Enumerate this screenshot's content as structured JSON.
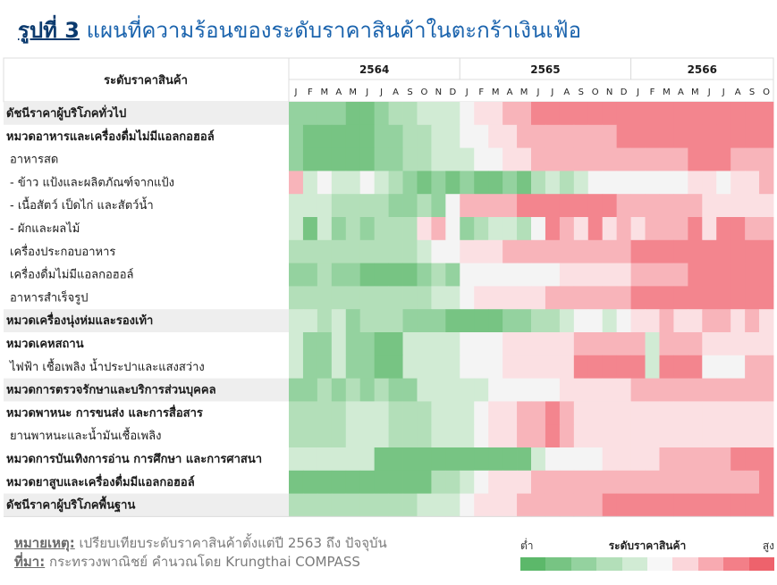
{
  "title": {
    "figure_label": "รูปที่ 3",
    "text": "แผนที่ความร้อนของระดับราคาสินค้าในตะกร้าเงินเฟ้อ"
  },
  "table_header": {
    "row_header": "ระดับราคาสินค้า",
    "years": [
      {
        "label": "2564",
        "months": 12
      },
      {
        "label": "2565",
        "months": 12
      },
      {
        "label": "2566",
        "months": 10
      }
    ],
    "month_letters": [
      "J",
      "F",
      "M",
      "A",
      "M",
      "J",
      "J",
      "A",
      "S",
      "O",
      "N",
      "D",
      "J",
      "F",
      "M",
      "A",
      "M",
      "J",
      "J",
      "A",
      "S",
      "O",
      "N",
      "D",
      "J",
      "F",
      "M",
      "A",
      "M",
      "J",
      "J",
      "A",
      "S",
      "O"
    ]
  },
  "chart_data": {
    "type": "heatmap",
    "title": "แผนที่ความร้อนของระดับราคาสินค้าในตะกร้าเงินเฟ้อ",
    "value_scale": "0 = ต่ำ (low), 9 = สูง (high); relative price level since 2563",
    "rows": [
      {
        "label": "ดัชนีราคาผู้บริโภคทั่วไป",
        "bold": true,
        "shade": true,
        "values": [
          2,
          2,
          2,
          2,
          1,
          1,
          2,
          3,
          3,
          4,
          4,
          4,
          5,
          6,
          6,
          7,
          7,
          8,
          8,
          8,
          8,
          8,
          8,
          8,
          8,
          8,
          8,
          8,
          8,
          8,
          8,
          8,
          8,
          8
        ]
      },
      {
        "label": "หมวดอาหารและเครื่องดื่มไม่มีแอลกอฮอล์",
        "bold": true,
        "shade": false,
        "values": [
          2,
          1,
          1,
          1,
          1,
          1,
          2,
          2,
          3,
          3,
          4,
          4,
          5,
          5,
          6,
          6,
          7,
          7,
          7,
          7,
          7,
          7,
          7,
          8,
          8,
          8,
          8,
          8,
          8,
          8,
          8,
          8,
          8,
          8
        ]
      },
      {
        "label": "อาหารสด",
        "bold": false,
        "shade": false,
        "values": [
          2,
          1,
          1,
          1,
          1,
          1,
          2,
          2,
          3,
          3,
          4,
          4,
          4,
          5,
          5,
          6,
          6,
          7,
          7,
          7,
          7,
          7,
          7,
          7,
          7,
          7,
          7,
          7,
          8,
          8,
          8,
          7,
          7,
          7
        ]
      },
      {
        "label": "- ข้าว แป้งและผลิตภัณฑ์จากแป้ง",
        "bold": false,
        "shade": false,
        "values": [
          7,
          4,
          5,
          4,
          4,
          5,
          4,
          3,
          2,
          1,
          2,
          1,
          2,
          1,
          1,
          2,
          1,
          3,
          4,
          3,
          4,
          5,
          5,
          5,
          5,
          5,
          5,
          5,
          6,
          6,
          5,
          6,
          6,
          7
        ]
      },
      {
        "label": "- เนื้อสัตว์ เป็ดไก่ และสัตว์น้ำ",
        "bold": false,
        "shade": false,
        "values": [
          4,
          4,
          4,
          3,
          3,
          3,
          3,
          2,
          2,
          3,
          2,
          5,
          7,
          7,
          7,
          7,
          8,
          8,
          8,
          8,
          8,
          8,
          8,
          7,
          7,
          7,
          7,
          7,
          7,
          6,
          6,
          6,
          6,
          6
        ]
      },
      {
        "label": "- ผักและผลไม้",
        "bold": false,
        "shade": false,
        "values": [
          4,
          1,
          4,
          2,
          3,
          2,
          3,
          3,
          3,
          6,
          7,
          5,
          2,
          3,
          4,
          4,
          3,
          5,
          8,
          7,
          6,
          8,
          6,
          7,
          6,
          7,
          7,
          7,
          8,
          6,
          8,
          8,
          7,
          7
        ]
      },
      {
        "label": "เครื่องประกอบอาหาร",
        "bold": false,
        "shade": false,
        "values": [
          3,
          3,
          3,
          3,
          3,
          3,
          3,
          3,
          3,
          4,
          5,
          5,
          6,
          6,
          6,
          7,
          7,
          7,
          7,
          7,
          7,
          7,
          7,
          7,
          8,
          8,
          8,
          8,
          8,
          8,
          8,
          8,
          8,
          8
        ]
      },
      {
        "label": "เครื่องดื่มไม่มีแอลกอฮอล์",
        "bold": false,
        "shade": false,
        "values": [
          2,
          2,
          3,
          2,
          2,
          1,
          1,
          1,
          1,
          2,
          3,
          2,
          5,
          5,
          5,
          5,
          5,
          5,
          5,
          6,
          6,
          6,
          6,
          6,
          7,
          7,
          7,
          7,
          8,
          8,
          8,
          8,
          8,
          8
        ]
      },
      {
        "label": "อาหารสำเร็จรูป",
        "bold": false,
        "shade": false,
        "values": [
          3,
          3,
          3,
          3,
          3,
          3,
          3,
          3,
          3,
          3,
          4,
          4,
          5,
          6,
          6,
          6,
          6,
          6,
          7,
          7,
          7,
          7,
          7,
          7,
          8,
          8,
          8,
          8,
          8,
          8,
          8,
          8,
          8,
          8
        ]
      },
      {
        "label": "หมวดเครื่องนุ่งห่มและรองเท้า",
        "bold": true,
        "shade": true,
        "values": [
          4,
          4,
          3,
          4,
          2,
          3,
          3,
          3,
          2,
          2,
          2,
          1,
          1,
          1,
          1,
          2,
          2,
          3,
          3,
          4,
          5,
          5,
          4,
          5,
          6,
          6,
          7,
          6,
          6,
          7,
          7,
          6,
          7,
          6
        ]
      },
      {
        "label": "หมวดเคหสถาน",
        "bold": true,
        "shade": false,
        "values": [
          4,
          2,
          2,
          4,
          2,
          2,
          1,
          1,
          4,
          4,
          4,
          4,
          5,
          5,
          5,
          6,
          6,
          6,
          6,
          6,
          7,
          7,
          7,
          7,
          7,
          4,
          7,
          7,
          7,
          6,
          6,
          6,
          6,
          6
        ]
      },
      {
        "label": "ไฟฟ้า เชื้อเพลิง น้ำประปาและแสงสว่าง",
        "bold": false,
        "shade": false,
        "values": [
          4,
          2,
          2,
          4,
          2,
          2,
          1,
          1,
          4,
          4,
          4,
          4,
          5,
          5,
          5,
          6,
          6,
          6,
          6,
          6,
          8,
          8,
          8,
          8,
          8,
          4,
          8,
          8,
          8,
          5,
          5,
          5,
          7,
          7
        ]
      },
      {
        "label": "หมวดการตรวจรักษาและบริการส่วนบุคคล",
        "bold": true,
        "shade": true,
        "values": [
          2,
          2,
          3,
          2,
          3,
          2,
          3,
          2,
          2,
          4,
          4,
          4,
          4,
          4,
          5,
          5,
          5,
          5,
          5,
          6,
          6,
          6,
          6,
          6,
          7,
          7,
          7,
          7,
          7,
          7,
          7,
          7,
          7,
          7
        ]
      },
      {
        "label": "หมวดพาหนะ การขนส่ง และการสื่อสาร",
        "bold": true,
        "shade": false,
        "values": [
          3,
          3,
          3,
          3,
          4,
          4,
          4,
          3,
          3,
          3,
          4,
          4,
          4,
          5,
          6,
          6,
          7,
          7,
          8,
          7,
          6,
          6,
          6,
          6,
          6,
          6,
          6,
          6,
          6,
          6,
          6,
          6,
          6,
          6
        ]
      },
      {
        "label": "ยานพาหนะและน้ำมันเชื้อเพลิง",
        "bold": false,
        "shade": false,
        "values": [
          3,
          3,
          3,
          3,
          4,
          4,
          4,
          3,
          3,
          3,
          4,
          4,
          4,
          5,
          6,
          6,
          7,
          7,
          8,
          7,
          6,
          6,
          6,
          6,
          6,
          6,
          6,
          6,
          6,
          6,
          6,
          6,
          6,
          6
        ]
      },
      {
        "label": "หมวดการบันเทิงการอ่าน การศึกษา และการศาสนา",
        "bold": true,
        "shade": false,
        "values": [
          4,
          4,
          4,
          4,
          4,
          4,
          1,
          1,
          1,
          1,
          1,
          1,
          1,
          1,
          1,
          1,
          1,
          4,
          5,
          5,
          5,
          5,
          6,
          6,
          6,
          6,
          7,
          7,
          7,
          7,
          7,
          8,
          8,
          8
        ]
      },
      {
        "label": "หมวดยาสูบและเครื่องดื่มมีแอลกอฮอล์",
        "bold": true,
        "shade": false,
        "values": [
          1,
          1,
          1,
          1,
          1,
          1,
          1,
          1,
          1,
          1,
          3,
          3,
          4,
          5,
          6,
          6,
          6,
          7,
          7,
          7,
          7,
          7,
          7,
          7,
          7,
          7,
          7,
          7,
          7,
          7,
          7,
          7,
          7,
          8
        ]
      },
      {
        "label": "ดัชนีราคาผู้บริโภคพื้นฐาน",
        "bold": true,
        "shade": true,
        "values": [
          3,
          3,
          3,
          3,
          3,
          3,
          3,
          3,
          3,
          4,
          4,
          4,
          5,
          6,
          6,
          6,
          7,
          7,
          7,
          7,
          7,
          7,
          8,
          8,
          8,
          8,
          8,
          8,
          8,
          8,
          8,
          8,
          8,
          8
        ]
      }
    ]
  },
  "footer": {
    "note_label": "หมายเหตุ:",
    "note_text": "เปรียบเทียบระดับราคาสินค้าตั้งแต่ปี 2563 ถึง ปัจจุบัน",
    "source_label": "ที่มา:",
    "source_text": "กระทรวงพาณิชย์ คำนวณโดย Krungthai COMPASS"
  },
  "legend": {
    "title": "ระดับราคาสินค้า",
    "low": "ต่ำ",
    "high": "สูง",
    "colors": [
      "#5cb86a",
      "#77c483",
      "#94d29f",
      "#b3dfb9",
      "#d1ebd4",
      "#f7f7f7",
      "#fbd6da",
      "#f8aab1",
      "#f37f88",
      "#ee626c"
    ]
  },
  "colors": {
    "palette": [
      "#5cb86a",
      "#77c483",
      "#94d29f",
      "#b3dfb9",
      "#d1ebd4",
      "#f4f4f4",
      "#fbe0e3",
      "#f8b4ba",
      "#f3858e",
      "#ee6870"
    ],
    "title_blue": "#1a63ad",
    "label_shade": "#eeeeee"
  }
}
